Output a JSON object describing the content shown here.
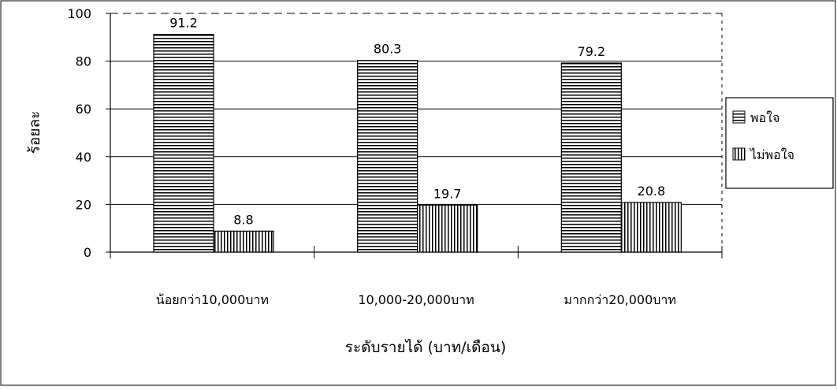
{
  "chart_data": {
    "type": "bar",
    "categories": [
      "น้อยกว่า10,000บาท",
      "10,000-20,000บาท",
      "มากกว่า20,000บาท"
    ],
    "series": [
      {
        "name": "พอใจ",
        "values": [
          91.2,
          80.3,
          79.2
        ],
        "pattern": "horizontal-stripes"
      },
      {
        "name": "ไม่พอใจ",
        "values": [
          8.8,
          19.7,
          20.8
        ],
        "pattern": "vertical-stripes"
      }
    ],
    "data_labels": [
      [
        "91.2",
        "80.3",
        "79.2"
      ],
      [
        "8.8",
        "19.7",
        "20.8"
      ]
    ],
    "xlabel": "ระดับรายได้ (บาท/เดือน)",
    "ylabel": "ร้อยละ",
    "ylim": [
      0,
      100
    ],
    "yticks": [
      "0",
      "20",
      "40",
      "60",
      "80",
      "100"
    ],
    "grid": true,
    "legend_position": "right"
  }
}
